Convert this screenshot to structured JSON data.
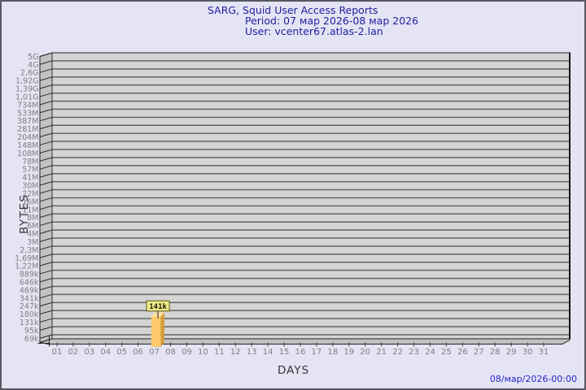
{
  "header": {
    "title": "SARG, Squid User Access Reports",
    "period": "Period: 07 мар 2026-08 мар 2026",
    "user": "User: vcenter67.atlas-2.lan"
  },
  "footer": {
    "generated_at": "08/мар/2026-00:00"
  },
  "chart_data": {
    "type": "bar",
    "title": "SARG, Squid User Access Reports",
    "subtitle": [
      "Period: 07 мар 2026-08 мар 2026",
      "User: vcenter67.atlas-2.lan"
    ],
    "xlabel": "DAYS",
    "ylabel": "BYTES",
    "yscale": "log",
    "ylim": [
      "69k",
      "5G"
    ],
    "grid": true,
    "legend": false,
    "categories": [
      "01",
      "02",
      "03",
      "04",
      "05",
      "06",
      "07",
      "08",
      "09",
      "10",
      "11",
      "12",
      "13",
      "14",
      "15",
      "16",
      "17",
      "18",
      "19",
      "20",
      "21",
      "22",
      "23",
      "24",
      "25",
      "26",
      "27",
      "28",
      "29",
      "30",
      "31"
    ],
    "values": [
      0,
      0,
      0,
      0,
      0,
      0,
      141000,
      0,
      0,
      0,
      0,
      0,
      0,
      0,
      0,
      0,
      0,
      0,
      0,
      0,
      0,
      0,
      0,
      0,
      0,
      0,
      0,
      0,
      0,
      0,
      0
    ],
    "bars": [
      {
        "category": "07",
        "label": "141k",
        "value": 141000
      }
    ],
    "y_tick_labels": [
      "5G",
      "4G",
      "2,6G",
      "1,92G",
      "1,39G",
      "1,01G",
      "734M",
      "533M",
      "387M",
      "281M",
      "204M",
      "148M",
      "108M",
      "78M",
      "57M",
      "41M",
      "30M",
      "22M",
      "16M",
      "11M",
      "8M",
      "6M",
      "4M",
      "3M",
      "2,3M",
      "1,69M",
      "1,22M",
      "889k",
      "646k",
      "469k",
      "341k",
      "247k",
      "180k",
      "131k",
      "95k",
      "69k"
    ],
    "colors": {
      "page_bg": "#E4E4F4",
      "frame_border": "#585862",
      "plot_bg": "#D4D4D4",
      "wall": "#C2C2C2",
      "grid": "#636363",
      "bar_front": "#FCC96B",
      "bar_side": "#D29E38",
      "bar_top": "#FFDFA0",
      "value_box_bg": "#EFEA8C",
      "value_box_border": "#6F6F23",
      "title_text": "#1E1E9E",
      "tick_text": "#7F7F7F",
      "axis_title_text": "#333333",
      "timestamp_text": "#2525C8"
    }
  }
}
